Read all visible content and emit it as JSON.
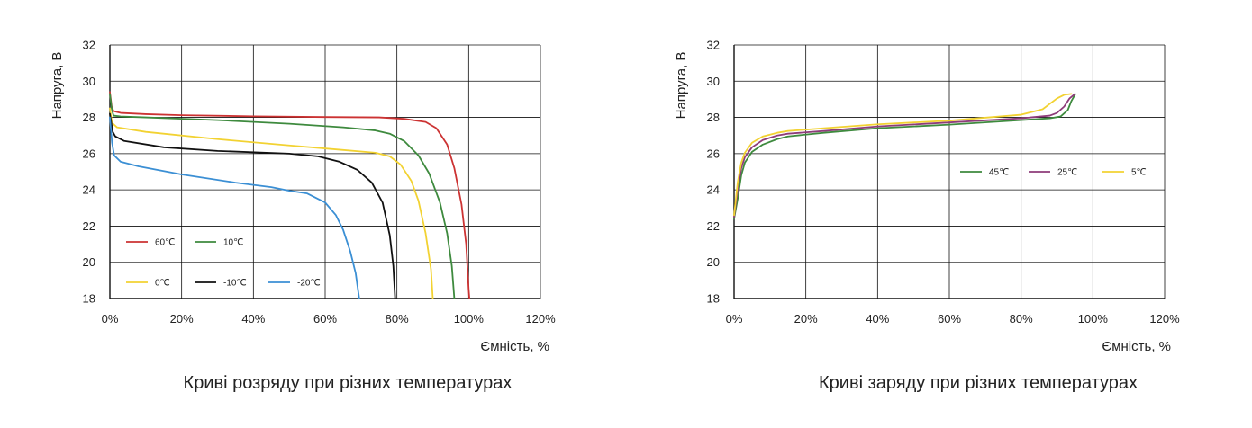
{
  "chart_data": [
    {
      "type": "line",
      "caption": "Криві розряду при різних температурах",
      "xlabel": "Ємність, %",
      "ylabel": "Напруга, В",
      "xlim": [
        0,
        120
      ],
      "ylim": [
        18,
        32
      ],
      "xticks": [
        "0%",
        "20%",
        "40%",
        "60%",
        "80%",
        "100%",
        "120%"
      ],
      "yticks": [
        "18",
        "20",
        "22",
        "24",
        "26",
        "28",
        "30",
        "32"
      ],
      "grid": true,
      "legend_placement": "bottom-left",
      "series": [
        {
          "name": "60℃",
          "color": "#cc3333",
          "points": [
            [
              0,
              29.4
            ],
            [
              0.5,
              28.6
            ],
            [
              1,
              28.35
            ],
            [
              3,
              28.25
            ],
            [
              10,
              28.18
            ],
            [
              20,
              28.12
            ],
            [
              40,
              28.06
            ],
            [
              60,
              28.02
            ],
            [
              75,
              28.0
            ],
            [
              82,
              27.92
            ],
            [
              88,
              27.75
            ],
            [
              91,
              27.4
            ],
            [
              94,
              26.5
            ],
            [
              96,
              25.2
            ],
            [
              98,
              23.2
            ],
            [
              99.3,
              21.0
            ],
            [
              100,
              18.5
            ],
            [
              100.2,
              18
            ]
          ]
        },
        {
          "name": "10℃",
          "color": "#3e8a3e",
          "points": [
            [
              0,
              29.3
            ],
            [
              0.5,
              28.5
            ],
            [
              1,
              28.1
            ],
            [
              3,
              28.05
            ],
            [
              10,
              28.0
            ],
            [
              30,
              27.85
            ],
            [
              50,
              27.65
            ],
            [
              65,
              27.45
            ],
            [
              74,
              27.28
            ],
            [
              78,
              27.1
            ],
            [
              82,
              26.7
            ],
            [
              86,
              25.9
            ],
            [
              89,
              24.9
            ],
            [
              92,
              23.3
            ],
            [
              94,
              21.6
            ],
            [
              95.3,
              19.8
            ],
            [
              96,
              18
            ]
          ]
        },
        {
          "name": "0℃",
          "color": "#f2d232",
          "points": [
            [
              0,
              28.5
            ],
            [
              0.6,
              27.7
            ],
            [
              2,
              27.45
            ],
            [
              10,
              27.2
            ],
            [
              30,
              26.8
            ],
            [
              50,
              26.45
            ],
            [
              65,
              26.2
            ],
            [
              74,
              26.05
            ],
            [
              78,
              25.85
            ],
            [
              81,
              25.4
            ],
            [
              84,
              24.5
            ],
            [
              86,
              23.4
            ],
            [
              88,
              21.6
            ],
            [
              89.5,
              19.6
            ],
            [
              90,
              18
            ]
          ]
        },
        {
          "name": "-10℃",
          "color": "#111111",
          "points": [
            [
              0,
              28.2
            ],
            [
              0.8,
              27.2
            ],
            [
              1.5,
              26.95
            ],
            [
              4,
              26.7
            ],
            [
              15,
              26.35
            ],
            [
              30,
              26.15
            ],
            [
              50,
              26.0
            ],
            [
              58,
              25.85
            ],
            [
              64,
              25.55
            ],
            [
              69,
              25.1
            ],
            [
              73,
              24.4
            ],
            [
              76,
              23.3
            ],
            [
              78,
              21.5
            ],
            [
              79,
              19.8
            ],
            [
              79.5,
              18
            ]
          ]
        },
        {
          "name": "-20℃",
          "color": "#3b8fd4",
          "points": [
            [
              0,
              28.0
            ],
            [
              0.6,
              26.6
            ],
            [
              1.2,
              25.9
            ],
            [
              3,
              25.55
            ],
            [
              8,
              25.3
            ],
            [
              20,
              24.85
            ],
            [
              35,
              24.4
            ],
            [
              45,
              24.15
            ],
            [
              50,
              23.95
            ],
            [
              55,
              23.8
            ],
            [
              60,
              23.3
            ],
            [
              63,
              22.6
            ],
            [
              65,
              21.8
            ],
            [
              67,
              20.6
            ],
            [
              68.5,
              19.4
            ],
            [
              69.5,
              18
            ]
          ]
        }
      ]
    },
    {
      "type": "line",
      "caption": "Криві заряду при різних температурах",
      "xlabel": "Ємність, %",
      "ylabel": "Напруга, В",
      "xlim": [
        0,
        120
      ],
      "ylim": [
        18,
        32
      ],
      "xticks": [
        "0%",
        "20%",
        "40%",
        "60%",
        "80%",
        "100%",
        "120%"
      ],
      "yticks": [
        "18",
        "20",
        "22",
        "24",
        "26",
        "28",
        "30",
        "32"
      ],
      "grid": true,
      "legend_placement": "center-right",
      "series": [
        {
          "name": "45℃",
          "color": "#3e8a3e",
          "points": [
            [
              0,
              22.4
            ],
            [
              1,
              23.5
            ],
            [
              2,
              24.8
            ],
            [
              3,
              25.5
            ],
            [
              5,
              26.1
            ],
            [
              8,
              26.5
            ],
            [
              12,
              26.8
            ],
            [
              15,
              26.95
            ],
            [
              25,
              27.15
            ],
            [
              40,
              27.4
            ],
            [
              60,
              27.6
            ],
            [
              80,
              27.85
            ],
            [
              88,
              27.95
            ],
            [
              91,
              28.05
            ],
            [
              93,
              28.4
            ],
            [
              94,
              28.9
            ],
            [
              95,
              29.25
            ]
          ]
        },
        {
          "name": "25℃",
          "color": "#8e3c7a",
          "points": [
            [
              0,
              22.5
            ],
            [
              1,
              24.0
            ],
            [
              2,
              25.2
            ],
            [
              3,
              25.8
            ],
            [
              5,
              26.35
            ],
            [
              8,
              26.75
            ],
            [
              12,
              27.0
            ],
            [
              15,
              27.1
            ],
            [
              25,
              27.25
            ],
            [
              40,
              27.5
            ],
            [
              60,
              27.72
            ],
            [
              80,
              27.95
            ],
            [
              88,
              28.1
            ],
            [
              90,
              28.25
            ],
            [
              92,
              28.6
            ],
            [
              93.5,
              29.05
            ],
            [
              95,
              29.3
            ]
          ]
        },
        {
          "name": "5℃",
          "color": "#f2d232",
          "points": [
            [
              0,
              22.6
            ],
            [
              1,
              24.4
            ],
            [
              2,
              25.5
            ],
            [
              3,
              26.05
            ],
            [
              5,
              26.6
            ],
            [
              8,
              26.95
            ],
            [
              12,
              27.15
            ],
            [
              15,
              27.25
            ],
            [
              25,
              27.4
            ],
            [
              40,
              27.62
            ],
            [
              60,
              27.82
            ],
            [
              80,
              28.15
            ],
            [
              86,
              28.45
            ],
            [
              88,
              28.75
            ],
            [
              90,
              29.05
            ],
            [
              92,
              29.25
            ],
            [
              94,
              29.3
            ]
          ]
        }
      ]
    }
  ]
}
